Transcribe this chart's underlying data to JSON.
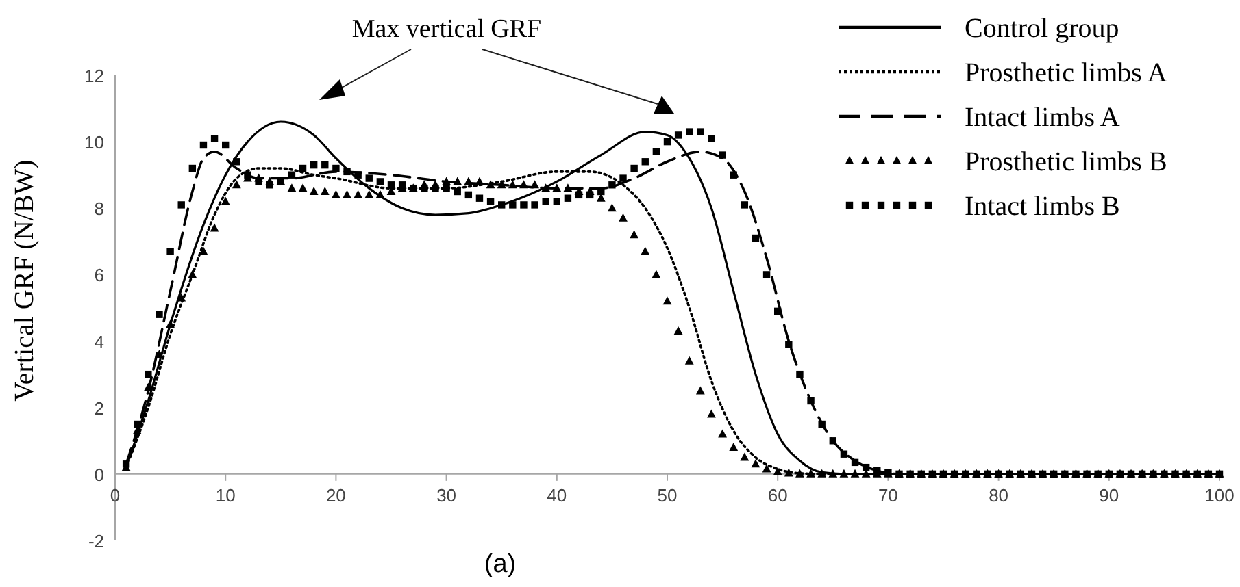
{
  "chart_data": {
    "type": "line",
    "ylabel": "Vertical GRF (N/BW)",
    "annotations": [
      "Max vertical GRF",
      "(a)"
    ],
    "xlim": [
      0,
      100
    ],
    "xticks": [
      0,
      10,
      20,
      30,
      40,
      50,
      60,
      70,
      80,
      90,
      100
    ],
    "ylim": [
      -2,
      12
    ],
    "yticks": [
      -2,
      0,
      2,
      4,
      6,
      8,
      10,
      12
    ],
    "grid": false,
    "legend": "top right",
    "series": [
      {
        "name": "Control group",
        "color": "#000000",
        "line_style": "solid",
        "marker": "none",
        "x": [
          1,
          3,
          5,
          8,
          10,
          12,
          15,
          18,
          20,
          23,
          26,
          29,
          32,
          35,
          40,
          44,
          48,
          50,
          52,
          54,
          56,
          58,
          60,
          62,
          64,
          66,
          70,
          80,
          90,
          100
        ],
        "values": [
          0.2,
          2.2,
          4.5,
          7.5,
          9,
          10,
          10.6,
          10.2,
          9.5,
          8.6,
          8,
          7.8,
          7.85,
          8.1,
          8.8,
          9.6,
          10.3,
          10.2,
          9.5,
          8,
          5.5,
          3,
          1.2,
          0.4,
          0.05,
          0,
          0,
          0,
          0,
          0
        ]
      },
      {
        "name": "Prosthetic limbs A",
        "color": "#000000",
        "line_style": "dotted",
        "marker": "none",
        "x": [
          1,
          3,
          5,
          7,
          9,
          11,
          13,
          15,
          18,
          20,
          25,
          30,
          35,
          40,
          43,
          46,
          48,
          50,
          52,
          54,
          56,
          58,
          60,
          62,
          64,
          70,
          80,
          90,
          100
        ],
        "values": [
          0.2,
          2,
          4.2,
          6,
          7.8,
          8.9,
          9.2,
          9.2,
          9,
          8.9,
          8.6,
          8.6,
          8.8,
          9.1,
          9.1,
          8.7,
          8,
          6.8,
          5,
          2.8,
          1.3,
          0.5,
          0.15,
          0.02,
          0,
          0,
          0,
          0,
          0
        ]
      },
      {
        "name": "Intact limbs A",
        "color": "#000000",
        "line_style": "dashed",
        "marker": "none",
        "x": [
          1,
          3,
          5,
          7,
          8,
          9,
          11,
          13,
          16,
          20,
          25,
          30,
          35,
          40,
          44,
          47,
          50,
          53,
          55,
          57,
          59,
          61,
          63,
          65,
          67,
          69,
          71,
          80,
          90,
          100
        ],
        "values": [
          0.3,
          2.5,
          5.5,
          8.5,
          9.5,
          9.7,
          9.2,
          8.9,
          8.9,
          9.1,
          9,
          8.8,
          8.7,
          8.6,
          8.6,
          8.9,
          9.4,
          9.7,
          9.5,
          8.5,
          6.5,
          4,
          2.2,
          1,
          0.4,
          0.1,
          0,
          0,
          0,
          0
        ]
      },
      {
        "name": "Prosthetic limbs B",
        "type": "scatter",
        "color": "#000000",
        "marker": "triangle",
        "x": [
          1,
          2,
          3,
          4,
          5,
          6,
          7,
          8,
          9,
          10,
          11,
          12,
          13,
          14,
          15,
          16,
          17,
          18,
          19,
          20,
          21,
          22,
          23,
          24,
          25,
          26,
          27,
          28,
          29,
          30,
          31,
          32,
          33,
          34,
          35,
          36,
          37,
          38,
          39,
          40,
          41,
          42,
          43,
          44,
          45,
          46,
          47,
          48,
          49,
          50,
          51,
          52,
          53,
          54,
          55,
          56,
          57,
          58,
          59,
          60,
          61,
          62,
          63,
          64,
          65,
          66,
          67,
          68,
          69,
          70,
          71,
          72,
          73,
          74,
          75,
          76,
          77,
          78,
          79,
          80,
          81,
          82,
          83,
          84,
          85,
          86,
          87,
          88,
          89,
          90,
          91,
          92,
          93,
          94,
          95,
          96,
          97,
          98,
          99,
          100
        ],
        "values": [
          0.2,
          1.3,
          2.6,
          3.6,
          4.5,
          5.3,
          6,
          6.7,
          7.4,
          8.2,
          8.7,
          8.9,
          8.9,
          8.8,
          8.8,
          8.6,
          8.6,
          8.5,
          8.5,
          8.4,
          8.4,
          8.4,
          8.4,
          8.4,
          8.5,
          8.6,
          8.6,
          8.7,
          8.7,
          8.8,
          8.8,
          8.8,
          8.8,
          8.7,
          8.7,
          8.7,
          8.7,
          8.7,
          8.6,
          8.6,
          8.6,
          8.5,
          8.5,
          8.3,
          8,
          7.7,
          7.2,
          6.7,
          6,
          5.2,
          4.3,
          3.4,
          2.5,
          1.8,
          1.2,
          0.8,
          0.5,
          0.3,
          0.15,
          0.07,
          0.03,
          0,
          0,
          0,
          0,
          0,
          0,
          0,
          0,
          0,
          0,
          0,
          0,
          0,
          0,
          0,
          0,
          0,
          0,
          0,
          0,
          0,
          0,
          0,
          0,
          0,
          0,
          0,
          0,
          0,
          0,
          0,
          0,
          0,
          0,
          0,
          0,
          0,
          0,
          0
        ]
      },
      {
        "name": "Intact limbs B",
        "type": "scatter",
        "color": "#000000",
        "marker": "square",
        "x": [
          1,
          2,
          3,
          4,
          5,
          6,
          7,
          8,
          9,
          10,
          11,
          12,
          13,
          14,
          15,
          16,
          17,
          18,
          19,
          20,
          21,
          22,
          23,
          24,
          25,
          26,
          27,
          28,
          29,
          30,
          31,
          32,
          33,
          34,
          35,
          36,
          37,
          38,
          39,
          40,
          41,
          42,
          43,
          44,
          45,
          46,
          47,
          48,
          49,
          50,
          51,
          52,
          53,
          54,
          55,
          56,
          57,
          58,
          59,
          60,
          61,
          62,
          63,
          64,
          65,
          66,
          67,
          68,
          69,
          70,
          71,
          72,
          73,
          74,
          75,
          76,
          77,
          78,
          79,
          80,
          81,
          82,
          83,
          84,
          85,
          86,
          87,
          88,
          89,
          90,
          91,
          92,
          93,
          94,
          95,
          96,
          97,
          98,
          99,
          100
        ],
        "values": [
          0.3,
          1.5,
          3,
          4.8,
          6.7,
          8.1,
          9.2,
          9.9,
          10.1,
          9.9,
          9.4,
          9,
          8.8,
          8.7,
          8.8,
          9,
          9.2,
          9.3,
          9.3,
          9.2,
          9.1,
          9,
          8.9,
          8.8,
          8.7,
          8.7,
          8.6,
          8.6,
          8.6,
          8.6,
          8.5,
          8.4,
          8.3,
          8.2,
          8.1,
          8.1,
          8.1,
          8.1,
          8.2,
          8.2,
          8.3,
          8.4,
          8.4,
          8.5,
          8.7,
          8.9,
          9.2,
          9.4,
          9.7,
          10,
          10.2,
          10.3,
          10.3,
          10.1,
          9.6,
          9,
          8.1,
          7.1,
          6,
          4.9,
          3.9,
          3,
          2.2,
          1.5,
          1,
          0.6,
          0.35,
          0.2,
          0.1,
          0.05,
          0,
          0,
          0,
          0,
          0,
          0,
          0,
          0,
          0,
          0,
          0,
          0,
          0,
          0,
          0,
          0,
          0,
          0,
          0,
          0,
          0,
          0,
          0,
          0,
          0,
          0,
          0,
          0,
          0,
          0
        ]
      }
    ]
  }
}
